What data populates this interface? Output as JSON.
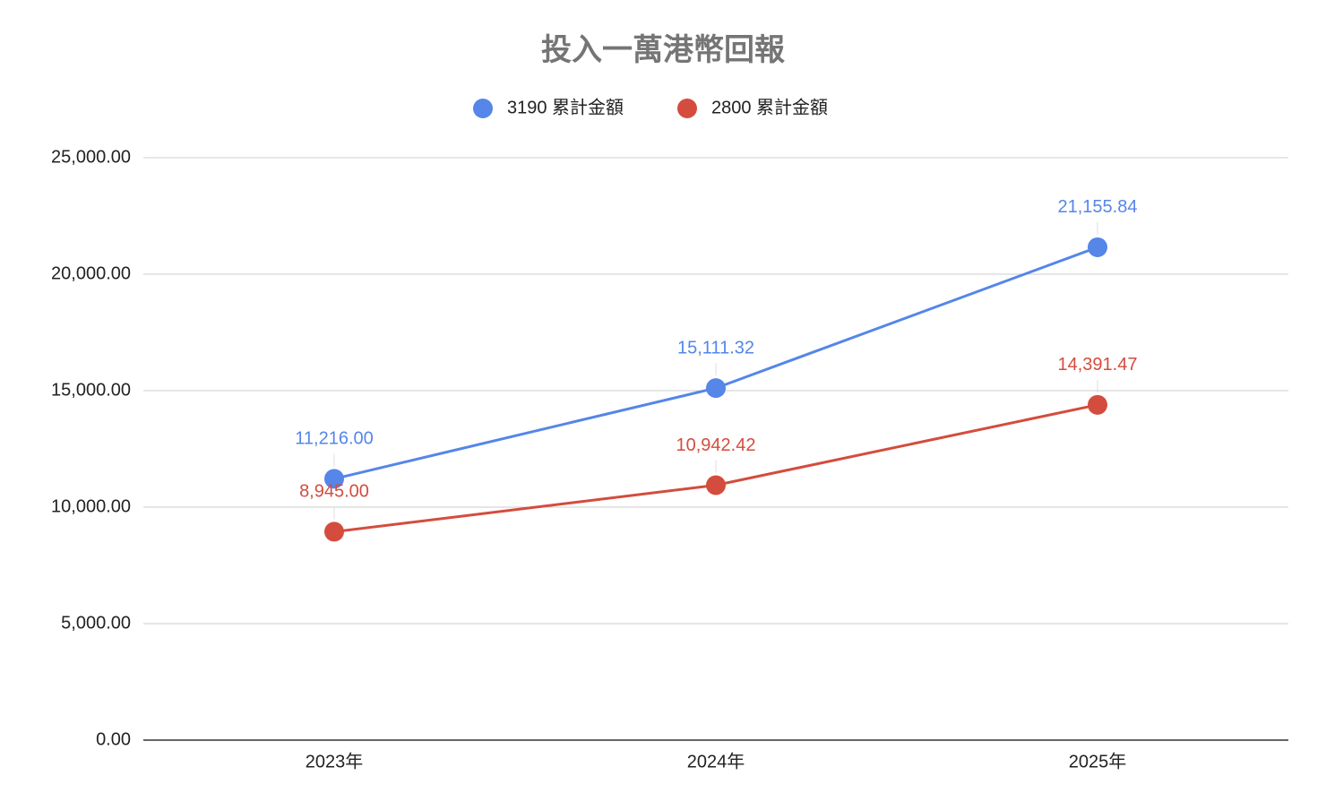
{
  "chart_data": {
    "type": "line",
    "title": "投入一萬港幣回報",
    "categories": [
      "2023年",
      "2024年",
      "2025年"
    ],
    "series": [
      {
        "name": "3190 累計金額",
        "color": "#5586e8",
        "values": [
          11216,
          15111.32,
          21155.84
        ],
        "value_labels": [
          "11,216.00",
          "15,111.32",
          "21,155.84"
        ]
      },
      {
        "name": "2800 累計金額",
        "color": "#d44c3d",
        "values": [
          8945,
          10942.42,
          14391.47
        ],
        "value_labels": [
          "8,945.00",
          "10,942.42",
          "14,391.47"
        ]
      }
    ],
    "ylim": [
      0,
      25000
    ],
    "yticks": [
      {
        "value": 0,
        "label": "0.00"
      },
      {
        "value": 5000,
        "label": "5,000.00"
      },
      {
        "value": 10000,
        "label": "10,000.00"
      },
      {
        "value": 15000,
        "label": "15,000.00"
      },
      {
        "value": 20000,
        "label": "20,000.00"
      },
      {
        "value": 25000,
        "label": "25,000.00"
      }
    ],
    "grid": true,
    "legend": "top"
  }
}
